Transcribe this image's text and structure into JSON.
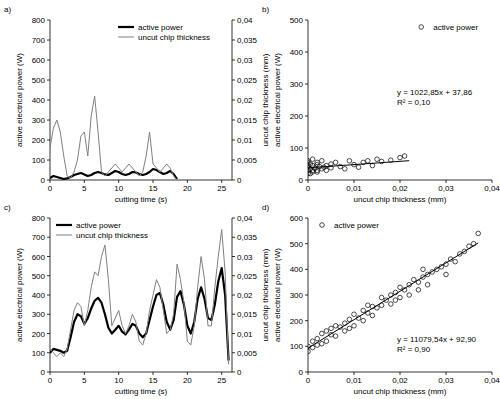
{
  "chart_data": [
    {
      "type": "line",
      "title": "a)",
      "x_label": "cutting time (s)",
      "y_label": "active electrical power (W)",
      "y2_label": "uncut chip thickness (mm)",
      "xlim": [
        0,
        26.5
      ],
      "xticks": [
        0,
        5,
        10,
        15,
        20,
        25
      ],
      "ylim": [
        0,
        800
      ],
      "yticks": [
        0,
        100,
        200,
        300,
        400,
        500,
        600,
        700,
        800
      ],
      "y2lim": [
        0,
        0.04
      ],
      "y2ticks": [
        0,
        {
          "value": 0.005,
          "label": "0,005"
        },
        {
          "value": 0.01,
          "label": "0,01"
        },
        {
          "value": 0.015,
          "label": "0,015"
        },
        {
          "value": 0.02,
          "label": "0,02"
        },
        {
          "value": 0.025,
          "label": "0,025"
        },
        {
          "value": 0.03,
          "label": "0,03"
        },
        {
          "value": 0.035,
          "label": "0,035"
        },
        {
          "value": 0.04,
          "label": "0,04"
        }
      ],
      "grid": false,
      "legend": "top-right",
      "x": [
        0,
        0.5,
        1,
        1.5,
        2,
        2.5,
        3,
        3.5,
        4,
        4.5,
        5,
        5.5,
        6,
        6.5,
        7,
        7.5,
        8,
        8.5,
        9,
        9.5,
        10,
        10.5,
        11,
        11.5,
        12,
        12.5,
        13,
        13.5,
        14,
        14.5,
        15,
        15.5,
        16,
        16.5,
        17,
        17.5,
        18,
        18.5
      ],
      "series": [
        {
          "name": "active power",
          "color": "#000000",
          "values": [
            10,
            20,
            15,
            10,
            5,
            8,
            15,
            25,
            30,
            35,
            28,
            20,
            25,
            35,
            40,
            35,
            28,
            25,
            35,
            45,
            40,
            30,
            25,
            30,
            40,
            38,
            30,
            25,
            30,
            40,
            55,
            50,
            40,
            30,
            35,
            45,
            30,
            5
          ]
        },
        {
          "name": "uncut chip thickness",
          "color": "#808080",
          "axis": "y2",
          "values": [
            0.008,
            0.013,
            0.015,
            0.012,
            0.006,
            0.001,
            0.0005,
            0.002,
            0.005,
            0.011,
            0.012,
            0.006,
            0.016,
            0.021,
            0.012,
            0.002,
            0.001,
            0.002,
            0.003,
            0.004,
            0.003,
            0.002,
            0.003,
            0.004,
            0.003,
            0.002,
            0.001,
            0.002,
            0.006,
            0.012,
            0.004,
            0.003,
            0.002,
            0.003,
            0.004,
            0.003,
            0.001,
            0
          ]
        }
      ]
    },
    {
      "type": "scatter",
      "title": "b)",
      "x_label": "uncut chip thickness (mm)",
      "y_label": "active electrical power (W)",
      "xlim": [
        0,
        0.04
      ],
      "xticks": [
        0,
        {
          "value": 0.01,
          "label": "0,01"
        },
        {
          "value": 0.02,
          "label": "0,02"
        },
        {
          "value": 0.03,
          "label": "0,03"
        },
        {
          "value": 0.04,
          "label": "0,04"
        }
      ],
      "ylim": [
        0,
        500
      ],
      "yticks": [
        0,
        100,
        200,
        300,
        400,
        500
      ],
      "grid": false,
      "legend": "top-right",
      "annotations": [
        "y = 1022,85x + 37,86",
        "R² = 0,10"
      ],
      "series": [
        {
          "name": "active power",
          "color": "#000000",
          "marker": "circle",
          "x": [
            0,
            0,
            0,
            0,
            0,
            0,
            0.0005,
            0.0005,
            0.001,
            0.001,
            0.001,
            0.0015,
            0.002,
            0.002,
            0.002,
            0.0025,
            0.003,
            0.003,
            0.0035,
            0.004,
            0.004,
            0.005,
            0.005,
            0.006,
            0.007,
            0.008,
            0.009,
            0.01,
            0.011,
            0.012,
            0.013,
            0.014,
            0.015,
            0.016,
            0.018,
            0.02,
            0.021,
            0.0005,
            0.001,
            0.002
          ],
          "values": [
            30,
            45,
            55,
            20,
            40,
            60,
            35,
            50,
            25,
            45,
            65,
            38,
            30,
            48,
            55,
            42,
            35,
            60,
            40,
            45,
            30,
            50,
            38,
            55,
            42,
            35,
            60,
            48,
            40,
            55,
            60,
            45,
            65,
            58,
            62,
            70,
            75,
            20,
            30,
            25
          ]
        },
        {
          "type": "line",
          "color": "#000000",
          "x": [
            0,
            0.022
          ],
          "values": [
            37.86,
            60.36
          ]
        }
      ]
    },
    {
      "type": "line",
      "title": "c)",
      "x_label": "cutting time (s)",
      "y_label": "active electrical power (W)",
      "y2_label": "uncut chip thickness (mm)",
      "xlim": [
        0,
        26.5
      ],
      "xticks": [
        0,
        5,
        10,
        15,
        20,
        25
      ],
      "ylim": [
        0,
        800
      ],
      "yticks": [
        0,
        100,
        200,
        300,
        400,
        500,
        600,
        700,
        800
      ],
      "y2lim": [
        0,
        0.04
      ],
      "y2ticks": [
        0,
        {
          "value": 0.005,
          "label": "0,005"
        },
        {
          "value": 0.01,
          "label": "0,01"
        },
        {
          "value": 0.015,
          "label": "0,015"
        },
        {
          "value": 0.02,
          "label": "0,02"
        },
        {
          "value": 0.025,
          "label": "0,025"
        },
        {
          "value": 0.03,
          "label": "0,03"
        },
        {
          "value": 0.035,
          "label": "0,035"
        },
        {
          "value": 0.04,
          "label": "0,04"
        }
      ],
      "grid": false,
      "legend": "top-left",
      "x": [
        0,
        0.5,
        1,
        1.5,
        2,
        2.5,
        3,
        3.5,
        4,
        4.5,
        5,
        5.5,
        6,
        6.5,
        7,
        7.5,
        8,
        8.5,
        9,
        9.5,
        10,
        10.5,
        11,
        11.5,
        12,
        12.5,
        13,
        13.5,
        14,
        14.5,
        15,
        15.5,
        16,
        16.5,
        17,
        17.5,
        18,
        18.5,
        19,
        19.5,
        20,
        20.5,
        21,
        21.5,
        22,
        22.5,
        23,
        23.5,
        24,
        24.5,
        25,
        25.5,
        26
      ],
      "series": [
        {
          "name": "active power",
          "color": "#000000",
          "values": [
            100,
            120,
            115,
            110,
            100,
            110,
            180,
            260,
            300,
            290,
            250,
            280,
            330,
            370,
            385,
            360,
            300,
            230,
            200,
            220,
            240,
            210,
            195,
            220,
            250,
            240,
            200,
            180,
            200,
            270,
            340,
            400,
            410,
            350,
            260,
            220,
            270,
            390,
            420,
            350,
            240,
            200,
            260,
            380,
            440,
            380,
            280,
            270,
            350,
            470,
            540,
            400,
            60
          ]
        },
        {
          "name": "uncut chip thickness",
          "color": "#808080",
          "axis": "y2",
          "values": [
            0.006,
            0.005,
            0.004,
            0.005,
            0.004,
            0.006,
            0.011,
            0.016,
            0.018,
            0.017,
            0.012,
            0.016,
            0.022,
            0.026,
            0.025,
            0.03,
            0.033,
            0.024,
            0.012,
            0.014,
            0.016,
            0.012,
            0.01,
            0.012,
            0.015,
            0.013,
            0.008,
            0.007,
            0.01,
            0.016,
            0.02,
            0.024,
            0.022,
            0.016,
            0.01,
            0.011,
            0.015,
            0.028,
            0.024,
            0.018,
            0.008,
            0.007,
            0.012,
            0.022,
            0.03,
            0.024,
            0.012,
            0.012,
            0.022,
            0.03,
            0.037,
            0.026,
            0.002
          ]
        }
      ]
    },
    {
      "type": "scatter",
      "title": "d)",
      "x_label": "uncut chip thickness (mm)",
      "y_label": "active electrical power (W)",
      "xlim": [
        0,
        0.04
      ],
      "xticks": [
        0,
        {
          "value": 0.01,
          "label": "0,01"
        },
        {
          "value": 0.02,
          "label": "0,02"
        },
        {
          "value": 0.03,
          "label": "0,03"
        },
        {
          "value": 0.04,
          "label": "0,04"
        }
      ],
      "ylim": [
        0,
        600
      ],
      "yticks": [
        0,
        100,
        200,
        300,
        400,
        500,
        600
      ],
      "grid": false,
      "legend": "top-left",
      "annotations": [
        "y = 11079,54x + 92,90",
        "R² = 0,90"
      ],
      "series": [
        {
          "name": "active power",
          "color": "#000000",
          "marker": "circle",
          "x": [
            0,
            0,
            0.001,
            0.001,
            0.002,
            0.002,
            0.003,
            0.004,
            0.004,
            0.005,
            0.006,
            0.006,
            0.007,
            0.008,
            0.008,
            0.009,
            0.01,
            0.01,
            0.011,
            0.012,
            0.012,
            0.013,
            0.014,
            0.014,
            0.015,
            0.016,
            0.016,
            0.017,
            0.018,
            0.018,
            0.019,
            0.02,
            0.02,
            0.021,
            0.022,
            0.022,
            0.023,
            0.024,
            0.024,
            0.025,
            0.026,
            0.026,
            0.027,
            0.028,
            0.029,
            0.03,
            0.03,
            0.031,
            0.032,
            0.033,
            0.034,
            0.035,
            0.036,
            0.037,
            0.003,
            0.005,
            0.009,
            0.013,
            0.019,
            0.025
          ],
          "values": [
            100,
            80,
            120,
            95,
            130,
            105,
            150,
            120,
            160,
            170,
            140,
            180,
            175,
            190,
            160,
            205,
            180,
            225,
            210,
            240,
            200,
            230,
            255,
            220,
            250,
            290,
            260,
            280,
            300,
            265,
            310,
            290,
            330,
            320,
            340,
            300,
            360,
            350,
            320,
            370,
            380,
            340,
            390,
            400,
            410,
            420,
            380,
            440,
            430,
            460,
            470,
            490,
            500,
            540,
            110,
            145,
            170,
            260,
            280,
            400
          ]
        },
        {
          "type": "line",
          "color": "#000000",
          "x": [
            0,
            0.037
          ],
          "values": [
            92.9,
            502.84
          ]
        }
      ]
    }
  ]
}
